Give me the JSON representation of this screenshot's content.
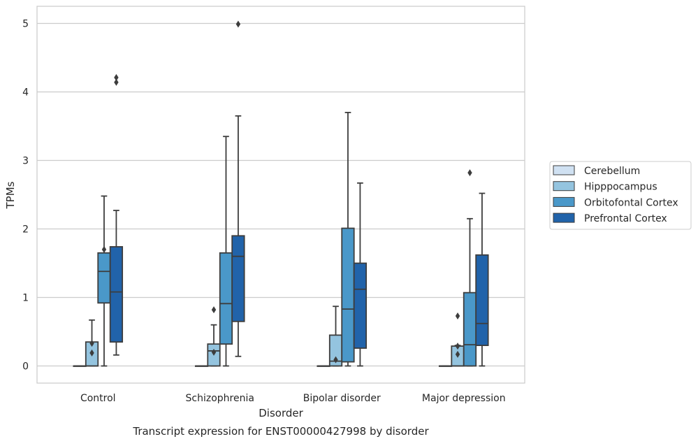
{
  "chart_data": {
    "type": "box",
    "caption": "Transcript expression for ENST00000427998 by disorder",
    "xlabel": "Disorder",
    "ylabel": "TPMs",
    "ylim": [
      -0.25,
      5.25
    ],
    "yticks": [
      0,
      1,
      2,
      3,
      4,
      5
    ],
    "grid": "horizontal",
    "legend_position": "right",
    "categories": [
      "Control",
      "Schizophrenia",
      "Bipolar disorder",
      "Major depression"
    ],
    "series": [
      {
        "name": "Cerebellum",
        "color": "#d0e1f2",
        "boxes": [
          {
            "category": "Control",
            "whisker_low": 0,
            "q1": 0,
            "median": 0,
            "q3": 0,
            "whisker_high": 0,
            "outliers": []
          },
          {
            "category": "Schizophrenia",
            "whisker_low": 0,
            "q1": 0,
            "median": 0,
            "q3": 0,
            "whisker_high": 0,
            "outliers": []
          },
          {
            "category": "Bipolar disorder",
            "whisker_low": 0,
            "q1": 0,
            "median": 0,
            "q3": 0,
            "whisker_high": 0,
            "outliers": []
          },
          {
            "category": "Major depression",
            "whisker_low": 0,
            "q1": 0,
            "median": 0,
            "q3": 0,
            "whisker_high": 0,
            "outliers": []
          }
        ]
      },
      {
        "name": "Hipppocampus",
        "color": "#94c4df",
        "boxes": [
          {
            "category": "Control",
            "whisker_low": 0,
            "q1": 0,
            "median": 0,
            "q3": 0.35,
            "whisker_high": 0.67,
            "outliers": [
              0.19,
              0.33
            ]
          },
          {
            "category": "Schizophrenia",
            "whisker_low": 0,
            "q1": 0,
            "median": 0.22,
            "q3": 0.32,
            "whisker_high": 0.6,
            "outliers": [
              0.2,
              0.82
            ]
          },
          {
            "category": "Bipolar disorder",
            "whisker_low": 0,
            "q1": 0,
            "median": 0.07,
            "q3": 0.45,
            "whisker_high": 0.87,
            "outliers": [
              0.09
            ]
          },
          {
            "category": "Major depression",
            "whisker_low": 0,
            "q1": 0,
            "median": 0,
            "q3": 0.29,
            "whisker_high": 0.3,
            "outliers": [
              0.17,
              0.29,
              0.73
            ]
          }
        ]
      },
      {
        "name": "Orbitofontal Cortex",
        "color": "#4a98c9",
        "boxes": [
          {
            "category": "Control",
            "whisker_low": 0,
            "q1": 0.92,
            "median": 1.38,
            "q3": 1.65,
            "whisker_high": 2.48,
            "outliers": [
              1.7
            ]
          },
          {
            "category": "Schizophrenia",
            "whisker_low": 0,
            "q1": 0.32,
            "median": 0.91,
            "q3": 1.65,
            "whisker_high": 3.35,
            "outliers": []
          },
          {
            "category": "Bipolar disorder",
            "whisker_low": 0,
            "q1": 0.06,
            "median": 0.83,
            "q3": 2.01,
            "whisker_high": 3.7,
            "outliers": []
          },
          {
            "category": "Major depression",
            "whisker_low": 0,
            "q1": 0,
            "median": 0.31,
            "q3": 1.07,
            "whisker_high": 2.15,
            "outliers": [
              2.82
            ]
          }
        ]
      },
      {
        "name": "Prefrontal Cortex",
        "color": "#2163aa",
        "boxes": [
          {
            "category": "Control",
            "whisker_low": 0.16,
            "q1": 0.35,
            "median": 1.08,
            "q3": 1.74,
            "whisker_high": 2.27,
            "outliers": [
              4.14,
              4.21
            ]
          },
          {
            "category": "Schizophrenia",
            "whisker_low": 0.14,
            "q1": 0.65,
            "median": 1.6,
            "q3": 1.9,
            "whisker_high": 3.65,
            "outliers": [
              4.99
            ]
          },
          {
            "category": "Bipolar disorder",
            "whisker_low": 0,
            "q1": 0.26,
            "median": 1.12,
            "q3": 1.5,
            "whisker_high": 2.67,
            "outliers": []
          },
          {
            "category": "Major depression",
            "whisker_low": 0,
            "q1": 0.3,
            "median": 0.62,
            "q3": 1.62,
            "whisker_high": 2.52,
            "outliers": []
          }
        ]
      }
    ]
  }
}
